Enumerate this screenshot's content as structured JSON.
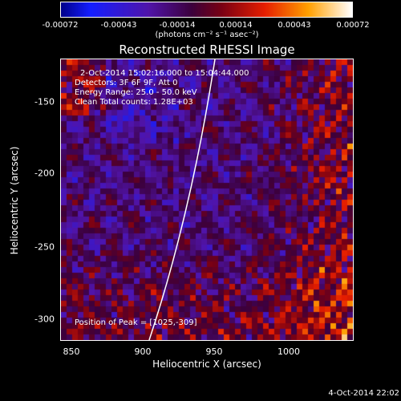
{
  "colorbar": {
    "ticks": [
      "-0.00072",
      "-0.00043",
      "-0.00014",
      "0.00014",
      "0.00043",
      "0.00072"
    ],
    "unit": "(photons cm⁻² s⁻¹ asec⁻²)"
  },
  "title": "Reconstructed RHESSI Image",
  "info": {
    "time": "2-Oct-2014 15:02:16.000 to 15:04:44.000",
    "detectors": "Detectors: 3F 6F 9F, Att 0",
    "energy": "Energy Range: 25.0 - 50.0 keV",
    "clean": "Clean     Total counts: 1.28E+03",
    "peak": "Position of Peak = [1025,-309]"
  },
  "axes": {
    "xlabel": "Heliocentric X (arcsec)",
    "ylabel": "Heliocentric Y (arcsec)",
    "xticks": [
      "850",
      "900",
      "950",
      "1000"
    ],
    "yticks": [
      "-150",
      "-200",
      "-250",
      "-300"
    ],
    "xrange": [
      845,
      1035
    ],
    "yrange": [
      -320,
      -127
    ]
  },
  "timestamp": "4-Oct-2014 22:02",
  "colors": {
    "frame": "#ffffff",
    "limb": "#ffffff"
  }
}
